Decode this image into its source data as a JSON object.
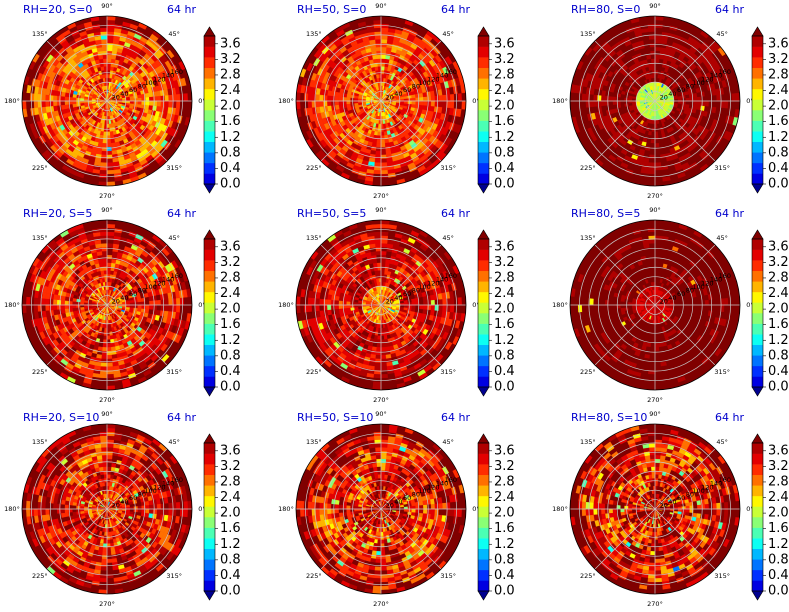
{
  "chart_data": {
    "type": "heatmap",
    "projection": "polar",
    "layout": {
      "rows": 3,
      "cols": 3
    },
    "angle_tick_labels": [
      "0°",
      "45°",
      "90°",
      "135°",
      "180°",
      "225°",
      "270°",
      "315°"
    ],
    "angle_tick_values": [
      0,
      45,
      90,
      135,
      180,
      225,
      270,
      315
    ],
    "radial_tick_values": [
      20,
      40,
      60,
      80,
      100,
      120,
      140,
      160
    ],
    "radial_max": 180,
    "colorbar": {
      "colormap": "jet",
      "min": 0.0,
      "max": 3.8,
      "extend": "both",
      "tick_values": [
        0.0,
        0.4,
        0.8,
        1.2,
        1.6,
        2.0,
        2.4,
        2.8,
        3.2,
        3.6
      ],
      "tick_labels": [
        "0.0",
        "0.4",
        "0.8",
        "1.2",
        "1.6",
        "2.0",
        "2.4",
        "2.8",
        "3.2",
        "3.6"
      ],
      "colors": [
        "#00008f",
        "#0000e1",
        "#0030ff",
        "#0074ff",
        "#00b8ff",
        "#0cfff3",
        "#4bffb4",
        "#8aff75",
        "#c9ff36",
        "#fff700",
        "#ffb400",
        "#ff7000",
        "#ff2c00",
        "#e30000",
        "#b00000",
        "#800000"
      ]
    },
    "panels": [
      {
        "title": "RH=20, S=0",
        "time": "64 hr",
        "dominant_value": 3.0,
        "background_value": 3.9,
        "inner_radius_value": 2.9,
        "variability": 0.55
      },
      {
        "title": "RH=50, S=0",
        "time": "64 hr",
        "dominant_value": 3.1,
        "background_value": 3.9,
        "inner_radius_value": 2.8,
        "variability": 0.45
      },
      {
        "title": "RH=80, S=0",
        "time": "64 hr",
        "dominant_value": 3.8,
        "background_value": 3.9,
        "inner_radius_value": 2.0,
        "variability": 0.2
      },
      {
        "title": "RH=20, S=5",
        "time": "64 hr",
        "dominant_value": 3.3,
        "background_value": 3.9,
        "inner_radius_value": 3.0,
        "variability": 0.55
      },
      {
        "title": "RH=50, S=5",
        "time": "64 hr",
        "dominant_value": 3.5,
        "background_value": 3.9,
        "inner_radius_value": 2.8,
        "variability": 0.45
      },
      {
        "title": "RH=80, S=5",
        "time": "64 hr",
        "dominant_value": 3.9,
        "background_value": 3.9,
        "inner_radius_value": 3.5,
        "variability": 0.15
      },
      {
        "title": "RH=20, S=10",
        "time": "64 hr",
        "dominant_value": 3.4,
        "background_value": 3.9,
        "inner_radius_value": 3.2,
        "variability": 0.6
      },
      {
        "title": "RH=50, S=10",
        "time": "64 hr",
        "dominant_value": 3.3,
        "background_value": 3.9,
        "inner_radius_value": 3.6,
        "variability": 0.7
      },
      {
        "title": "RH=80, S=10",
        "time": "64 hr",
        "dominant_value": 3.4,
        "background_value": 3.9,
        "inner_radius_value": 3.6,
        "variability": 0.75
      }
    ]
  }
}
